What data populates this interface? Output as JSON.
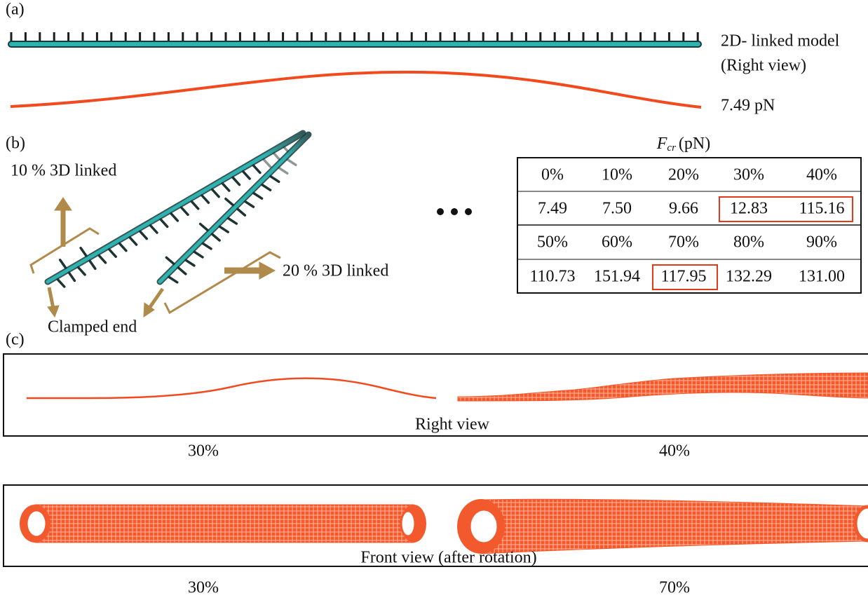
{
  "panel_a": {
    "label": "(a)",
    "model_label": "2D- linked model",
    "view_label": "(Right view)",
    "force": "7.49 pN"
  },
  "panel_b": {
    "label": "(b)",
    "annotation_10": "10 % 3D linked",
    "annotation_20": "20 % 3D linked",
    "clamped_end": "Clamped end",
    "table": {
      "title_symbol": "F",
      "title_subscript": "cr",
      "title_unit": "(pN)",
      "rows": [
        [
          "0%",
          "10%",
          "20%",
          "30%",
          "40%"
        ],
        [
          "7.49",
          "7.50",
          "9.66",
          "12.83",
          "115.16"
        ],
        [
          "50%",
          "60%",
          "70%",
          "80%",
          "90%"
        ],
        [
          "110.73",
          "151.94",
          "117.95",
          "132.29",
          "131.00"
        ]
      ]
    }
  },
  "panel_c": {
    "label": "(c)",
    "right_view": "Right view",
    "right_left_caption": "30%",
    "right_right_caption": "40%",
    "front_view": "Front view (after rotation)",
    "front_left_caption": "30%",
    "front_right_caption": "70%"
  }
}
